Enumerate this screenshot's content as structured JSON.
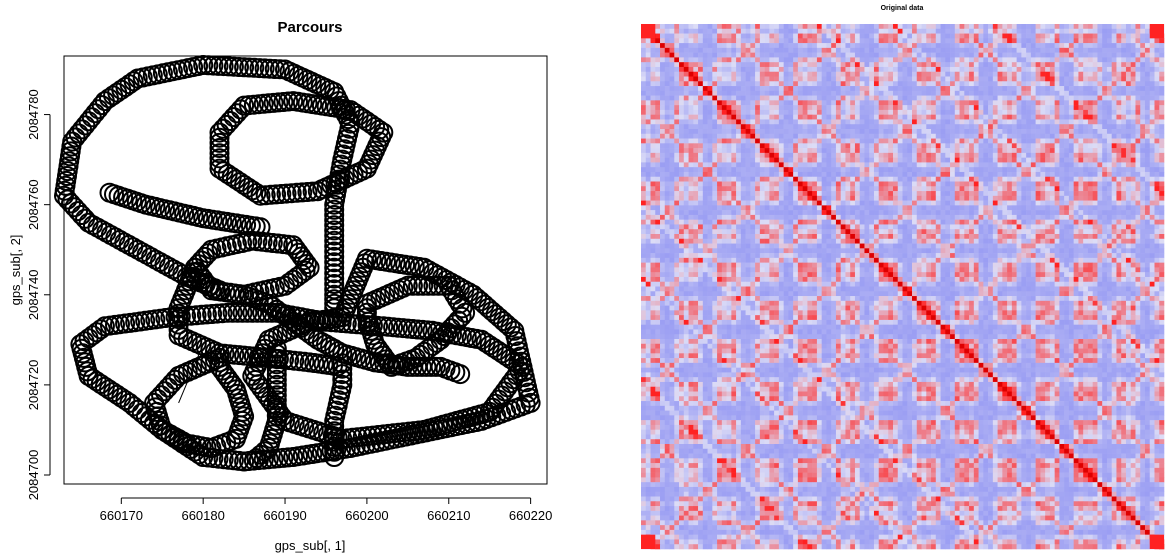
{
  "chart_data": [
    {
      "type": "scatter",
      "title": "Parcours",
      "xlabel": "gps_sub[, 1]",
      "ylabel": "gps_sub[, 2]",
      "xlim": [
        660163,
        660222
      ],
      "ylim": [
        2084698,
        2084793
      ],
      "x_ticks": [
        660170,
        660180,
        660190,
        660200,
        660210,
        660220
      ],
      "y_ticks": [
        2084700,
        2084720,
        2084740,
        2084760,
        2084780
      ],
      "grid": false,
      "legend": "none",
      "point_color": "#000000",
      "series": [
        {
          "path_points": [
            [
              660180,
              2084704
            ],
            [
              660175,
              2084710
            ],
            [
              660171,
              2084716
            ],
            [
              660166,
              2084722
            ],
            [
              660165,
              2084729
            ],
            [
              660168,
              2084733
            ],
            [
              660176,
              2084735
            ],
            [
              660183,
              2084736
            ],
            [
              660189,
              2084736
            ],
            [
              660195,
              2084734
            ],
            [
              660202,
              2084733
            ],
            [
              660208,
              2084732
            ],
            [
              660214,
              2084730
            ],
            [
              660219,
              2084724
            ],
            [
              660220,
              2084716
            ],
            [
              660214,
              2084712
            ],
            [
              660206,
              2084709
            ],
            [
              660198,
              2084706
            ],
            [
              660191,
              2084704
            ],
            [
              660185,
              2084703
            ],
            [
              660180,
              2084704
            ]
          ]
        },
        {
          "path_points": [
            [
              660197,
              2084735
            ],
            [
              660200,
              2084748
            ],
            [
              660207,
              2084746
            ],
            [
              660213,
              2084740
            ],
            [
              660218,
              2084732
            ],
            [
              660219,
              2084724
            ],
            [
              660215,
              2084714
            ],
            [
              660207,
              2084710
            ],
            [
              660197,
              2084708
            ],
            [
              660190,
              2084712
            ],
            [
              660186,
              2084722
            ],
            [
              660188,
              2084730
            ],
            [
              660193,
              2084734
            ],
            [
              660197,
              2084735
            ]
          ]
        },
        {
          "path_points": [
            [
              660200,
              2084738
            ],
            [
              660205,
              2084742
            ],
            [
              660210,
              2084742
            ],
            [
              660212,
              2084736
            ],
            [
              660209,
              2084730
            ],
            [
              660206,
              2084726
            ],
            [
              660203,
              2084724
            ],
            [
              660201,
              2084729
            ],
            [
              660200,
              2084735
            ],
            [
              660200,
              2084738
            ]
          ]
        },
        {
          "path_points": [
            [
              660186,
              2084752
            ],
            [
              660191,
              2084751
            ],
            [
              660193,
              2084746
            ],
            [
              660190,
              2084742
            ],
            [
              660185,
              2084740
            ],
            [
              660181,
              2084741
            ],
            [
              660179,
              2084746
            ],
            [
              660181,
              2084750
            ],
            [
              660186,
              2084752
            ]
          ]
        },
        {
          "path_points": [
            [
              660185,
              2084740
            ],
            [
              660188,
              2084738
            ],
            [
              660191,
              2084734
            ],
            [
              660194,
              2084730
            ],
            [
              660197,
              2084727
            ],
            [
              660201,
              2084725
            ],
            [
              660205,
              2084724
            ],
            [
              660209,
              2084724
            ],
            [
              660212,
              2084722
            ]
          ]
        },
        {
          "path_points": [
            [
              660179,
              2084746
            ],
            [
              660177,
              2084737
            ],
            [
              660177,
              2084731
            ],
            [
              660182,
              2084727
            ],
            [
              660188,
              2084726
            ],
            [
              660193,
              2084725
            ],
            [
              660197,
              2084724
            ]
          ]
        },
        {
          "path_points": [
            [
              660189,
              2084728
            ],
            [
              660189,
              2084720
            ],
            [
              660189,
              2084712
            ],
            [
              660188,
              2084706
            ],
            [
              660186,
              2084703
            ]
          ]
        },
        {
          "path_points": [
            [
              660182,
              2084726
            ],
            [
              660177,
              2084722
            ],
            [
              660174,
              2084716
            ],
            [
              660175,
              2084710
            ],
            [
              660178,
              2084707
            ],
            [
              660181,
              2084706
            ],
            [
              660184,
              2084708
            ],
            [
              660185,
              2084713
            ],
            [
              660184,
              2084719
            ],
            [
              660182,
              2084724
            ],
            [
              660182,
              2084726
            ]
          ]
        },
        {
          "path_points": [
            [
              660196,
              2084704
            ],
            [
              660196,
              2084712
            ],
            [
              660197,
              2084720
            ],
            [
              660197,
              2084726
            ]
          ]
        },
        {
          "path_points": [
            [
              660182,
              2084741
            ],
            [
              660178,
              2084744
            ],
            [
              660172,
              2084750
            ],
            [
              660166,
              2084756
            ],
            [
              660163,
              2084762
            ],
            [
              660164,
              2084774
            ],
            [
              660168,
              2084783
            ],
            [
              660172,
              2084788
            ],
            [
              660180,
              2084791
            ],
            [
              660190,
              2084790
            ],
            [
              660196,
              2084785
            ],
            [
              660198,
              2084778
            ],
            [
              660197,
              2084770
            ],
            [
              660196,
              2084760
            ],
            [
              660196,
              2084752
            ],
            [
              660196,
              2084746
            ],
            [
              660196,
              2084740
            ],
            [
              660196,
              2084736
            ]
          ]
        },
        {
          "path_points": [
            [
              660187,
              2084755
            ],
            [
              660180,
              2084757
            ],
            [
              660173,
              2084760
            ],
            [
              660168,
              2084763
            ]
          ]
        },
        {
          "path_points": [
            [
              660191,
              2084783
            ],
            [
              660198,
              2084781
            ],
            [
              660202,
              2084776
            ],
            [
              660200,
              2084768
            ],
            [
              660194,
              2084763
            ],
            [
              660187,
              2084762
            ],
            [
              660182,
              2084768
            ],
            [
              660182,
              2084776
            ],
            [
              660185,
              2084782
            ],
            [
              660191,
              2084783
            ]
          ]
        }
      ],
      "extra_line": [
        [
          660177,
          2084716
        ],
        [
          660180,
          2084729
        ]
      ]
    },
    {
      "type": "heatmap",
      "title": "Original data",
      "xlabel": "",
      "ylabel": "",
      "grid": false,
      "legend": "none",
      "low_color": "#8a8ef2",
      "mid_color": "#dcdcf6",
      "high_color": "#ff2222",
      "diagonal_color": "#dd0000",
      "size_cells": 110
    }
  ]
}
